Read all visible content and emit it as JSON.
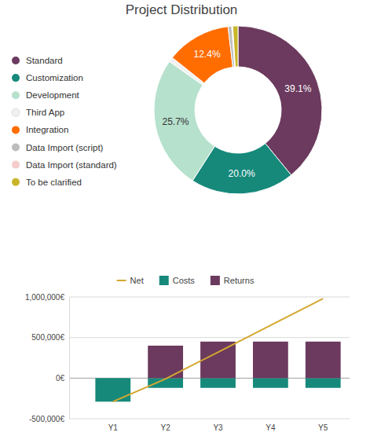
{
  "chart_data": [
    {
      "type": "pie",
      "title": "Project Distribution",
      "categories": [
        "Standard",
        "Customization",
        "Development",
        "Third App",
        "Integration",
        "Data Import (script)",
        "Data Import (standard)",
        "To be clarified"
      ],
      "values": [
        39.1,
        20.0,
        25.7,
        0.9,
        12.4,
        0.7,
        0.2,
        1.0
      ],
      "value_labels": [
        "39.1%",
        "20.0%",
        "25.7%",
        null,
        "12.4%",
        null,
        null,
        null
      ],
      "colors": [
        "#6b3a5e",
        "#16897b",
        "#b6e1cd",
        "#f1f1f1",
        "#ff6d01",
        "#bdbdbd",
        "#f4cccc",
        "#c9b52a"
      ],
      "data_labels": true,
      "legend": "left"
    },
    {
      "type": "bar",
      "categories": [
        "Y1",
        "Y2",
        "Y3",
        "Y4",
        "Y5"
      ],
      "series": [
        {
          "name": "Net",
          "type": "line",
          "color": "#d4a82f",
          "values": [
            -290000,
            -10000,
            320000,
            650000,
            980000
          ]
        },
        {
          "name": "Costs",
          "type": "bar",
          "color": "#16897b",
          "values": [
            -290000,
            -120000,
            -120000,
            -120000,
            -120000
          ]
        },
        {
          "name": "Returns",
          "type": "bar",
          "color": "#6b3a5e",
          "values": [
            0,
            400000,
            450000,
            450000,
            450000
          ]
        }
      ],
      "ylim": [
        -500000,
        1000000
      ],
      "yticks": [
        {
          "value": -500000,
          "label": "-500,000€"
        },
        {
          "value": 0,
          "label": "0€"
        },
        {
          "value": 500000,
          "label": "500,000€"
        },
        {
          "value": 1000000,
          "label": "1,000,000€"
        }
      ],
      "grid": true,
      "legend": "top"
    }
  ]
}
